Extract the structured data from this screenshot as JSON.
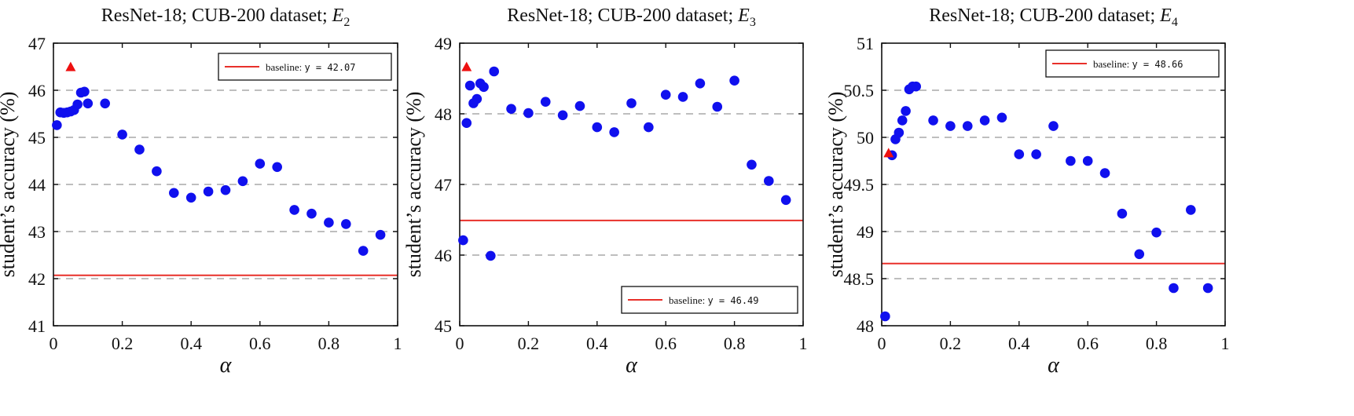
{
  "chart_data": [
    {
      "type": "scatter",
      "title": "ResNet-18; CUB-200 dataset; ",
      "title_sym": "E",
      "title_sub": "2",
      "xlabel": "α",
      "ylabel": "student’s accuracy (%)",
      "xlim": [
        0,
        1
      ],
      "ylim": [
        41,
        47
      ],
      "xticks": [
        0,
        0.2,
        0.4,
        0.6,
        0.8,
        1
      ],
      "xtick_labels": [
        "0",
        "0.2",
        "0.4",
        "0.6",
        "0.8",
        "1"
      ],
      "yticks": [
        41,
        42,
        43,
        44,
        45,
        46,
        47
      ],
      "ytick_labels": [
        "41",
        "42",
        "43",
        "44",
        "45",
        "46",
        "47"
      ],
      "grid": "horizontal dashed",
      "legend_position": "top-right",
      "baseline": {
        "label": "baseline: ",
        "eq": "y = 42.07",
        "value": 42.07,
        "color": "#e8302a"
      },
      "marker_color": "#1010ee",
      "triangle_color": "#ee1010",
      "points": [
        [
          0.01,
          45.26
        ],
        [
          0.02,
          45.53
        ],
        [
          0.03,
          45.52
        ],
        [
          0.04,
          45.53
        ],
        [
          0.05,
          45.55
        ],
        [
          0.06,
          45.58
        ],
        [
          0.07,
          45.7
        ],
        [
          0.08,
          45.95
        ],
        [
          0.09,
          45.97
        ],
        [
          0.1,
          45.72
        ],
        [
          0.15,
          45.72
        ],
        [
          0.2,
          45.06
        ],
        [
          0.25,
          44.74
        ],
        [
          0.3,
          44.28
        ],
        [
          0.35,
          43.82
        ],
        [
          0.4,
          43.72
        ],
        [
          0.45,
          43.85
        ],
        [
          0.5,
          43.88
        ],
        [
          0.55,
          44.07
        ],
        [
          0.6,
          44.44
        ],
        [
          0.65,
          44.37
        ],
        [
          0.7,
          43.46
        ],
        [
          0.75,
          43.38
        ],
        [
          0.8,
          43.19
        ],
        [
          0.85,
          43.16
        ],
        [
          0.9,
          42.59
        ],
        [
          0.95,
          42.93
        ]
      ],
      "triangles": [
        [
          0.05,
          46.49
        ]
      ]
    },
    {
      "type": "scatter",
      "title": "ResNet-18; CUB-200 dataset; ",
      "title_sym": "E",
      "title_sub": "3",
      "xlabel": "α",
      "ylabel": "student’s accuracy (%)",
      "xlim": [
        0,
        1
      ],
      "ylim": [
        45,
        49
      ],
      "xticks": [
        0,
        0.2,
        0.4,
        0.6,
        0.8,
        1
      ],
      "xtick_labels": [
        "0",
        "0.2",
        "0.4",
        "0.6",
        "0.8",
        "1"
      ],
      "yticks": [
        45,
        46,
        47,
        48,
        49
      ],
      "ytick_labels": [
        "45",
        "46",
        "47",
        "48",
        "49"
      ],
      "grid": "horizontal dashed",
      "legend_position": "bottom-right",
      "baseline": {
        "label": "baseline: ",
        "eq": "y = 46.49",
        "value": 46.49,
        "color": "#e8302a"
      },
      "marker_color": "#1010ee",
      "triangle_color": "#ee1010",
      "points": [
        [
          0.01,
          46.21
        ],
        [
          0.02,
          47.87
        ],
        [
          0.03,
          48.4
        ],
        [
          0.04,
          48.15
        ],
        [
          0.05,
          48.21
        ],
        [
          0.06,
          48.43
        ],
        [
          0.07,
          48.38
        ],
        [
          0.09,
          45.99
        ],
        [
          0.1,
          48.6
        ],
        [
          0.15,
          48.07
        ],
        [
          0.2,
          48.01
        ],
        [
          0.25,
          48.17
        ],
        [
          0.3,
          47.98
        ],
        [
          0.35,
          48.11
        ],
        [
          0.4,
          47.81
        ],
        [
          0.45,
          47.74
        ],
        [
          0.5,
          48.15
        ],
        [
          0.55,
          47.81
        ],
        [
          0.6,
          48.27
        ],
        [
          0.65,
          48.24
        ],
        [
          0.7,
          48.43
        ],
        [
          0.75,
          48.1
        ],
        [
          0.8,
          48.47
        ],
        [
          0.85,
          47.28
        ],
        [
          0.9,
          47.05
        ],
        [
          0.95,
          46.78
        ]
      ],
      "triangles": [
        [
          0.02,
          48.66
        ]
      ]
    },
    {
      "type": "scatter",
      "title": "ResNet-18; CUB-200 dataset; ",
      "title_sym": "E",
      "title_sub": "4",
      "xlabel": "α",
      "ylabel": "student’s accuracy (%)",
      "xlim": [
        0,
        1
      ],
      "ylim": [
        48,
        51
      ],
      "xticks": [
        0,
        0.2,
        0.4,
        0.6,
        0.8,
        1
      ],
      "xtick_labels": [
        "0",
        "0.2",
        "0.4",
        "0.6",
        "0.8",
        "1"
      ],
      "yticks": [
        48,
        48.5,
        49,
        49.5,
        50,
        50.5,
        51
      ],
      "ytick_labels": [
        "48",
        "48.5",
        "49",
        "49.5",
        "50",
        "50.5",
        "51"
      ],
      "grid": "horizontal dashed",
      "legend_position": "top-right",
      "baseline": {
        "label": "baseline: ",
        "eq": "y = 48.66",
        "value": 48.66,
        "color": "#e8302a"
      },
      "marker_color": "#1010ee",
      "triangle_color": "#ee1010",
      "points": [
        [
          0.01,
          48.1
        ],
        [
          0.03,
          49.81
        ],
        [
          0.04,
          49.98
        ],
        [
          0.05,
          50.05
        ],
        [
          0.06,
          50.18
        ],
        [
          0.07,
          50.28
        ],
        [
          0.08,
          50.51
        ],
        [
          0.09,
          50.54
        ],
        [
          0.1,
          50.54
        ],
        [
          0.15,
          50.18
        ],
        [
          0.2,
          50.12
        ],
        [
          0.25,
          50.12
        ],
        [
          0.3,
          50.18
        ],
        [
          0.35,
          50.21
        ],
        [
          0.4,
          49.82
        ],
        [
          0.45,
          49.82
        ],
        [
          0.5,
          50.12
        ],
        [
          0.55,
          49.75
        ],
        [
          0.6,
          49.75
        ],
        [
          0.65,
          49.62
        ],
        [
          0.7,
          49.19
        ],
        [
          0.75,
          48.76
        ],
        [
          0.8,
          48.99
        ],
        [
          0.85,
          48.4
        ],
        [
          0.9,
          49.23
        ],
        [
          0.95,
          48.4
        ]
      ],
      "triangles": [
        [
          0.02,
          49.83
        ]
      ]
    }
  ]
}
